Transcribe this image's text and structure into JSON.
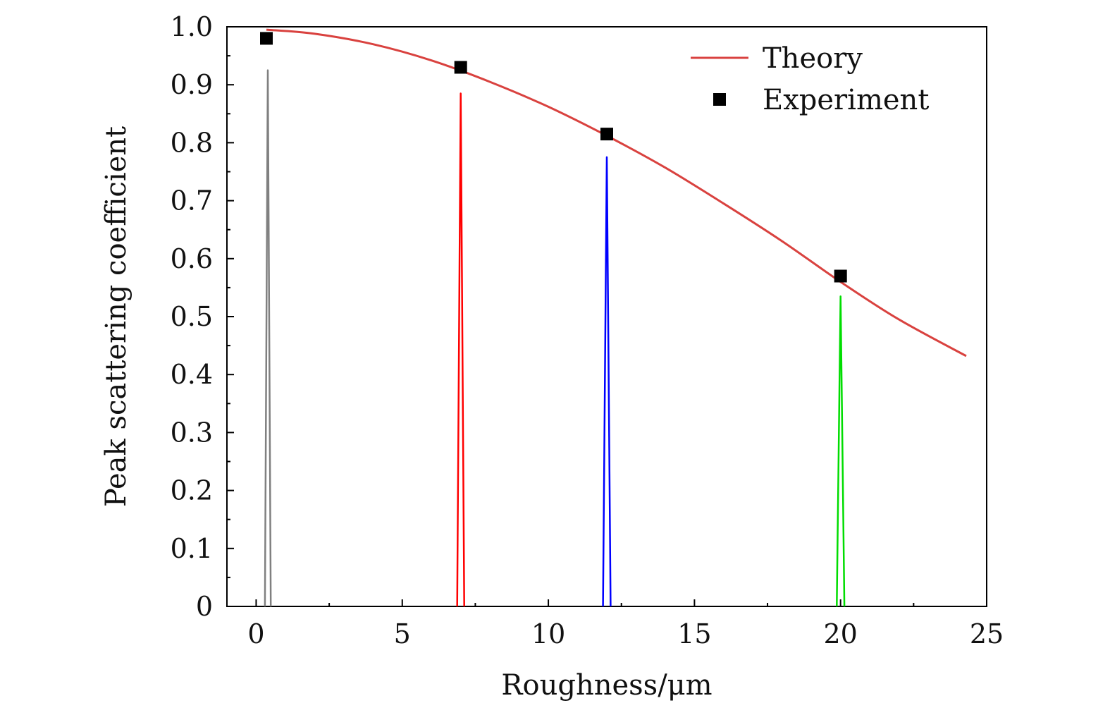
{
  "chart_data": {
    "type": "line",
    "title": "",
    "xlabel": "Roughness/μm",
    "ylabel": "Peak scattering coefficient",
    "xlim": [
      -1,
      25
    ],
    "ylim": [
      0,
      1.0
    ],
    "x_ticks": [
      0,
      5,
      10,
      15,
      20,
      25
    ],
    "x_tick_labels": [
      "0",
      "5",
      "10",
      "15",
      "20",
      "25"
    ],
    "y_ticks": [
      0,
      0.1,
      0.2,
      0.3,
      0.4,
      0.5,
      0.6,
      0.7,
      0.8,
      0.9,
      1.0
    ],
    "y_tick_labels": [
      "0",
      "0.1",
      "0.2",
      "0.3",
      "0.4",
      "0.5",
      "0.6",
      "0.7",
      "0.8",
      "0.9",
      "1.0"
    ],
    "grid": false,
    "legend_position": "top-right",
    "series": [
      {
        "name": "Theory",
        "kind": "line",
        "color": "#d9423f",
        "x": [
          0.35,
          2,
          4,
          6,
          8,
          10,
          12,
          14,
          16,
          18,
          20,
          22,
          24.3
        ],
        "y": [
          0.995,
          0.988,
          0.97,
          0.942,
          0.905,
          0.862,
          0.812,
          0.757,
          0.695,
          0.63,
          0.56,
          0.495,
          0.432
        ]
      },
      {
        "name": "Experiment",
        "kind": "scatter",
        "color": "#000000",
        "x": [
          0.35,
          7,
          12,
          20
        ],
        "y": [
          0.98,
          0.93,
          0.815,
          0.57
        ]
      }
    ],
    "peaks": [
      {
        "center": 0.4,
        "height": 0.925,
        "half_width": 0.1,
        "color": "#808080"
      },
      {
        "center": 7.0,
        "height": 0.885,
        "half_width": 0.12,
        "color": "#ff0000"
      },
      {
        "center": 12.0,
        "height": 0.775,
        "half_width": 0.13,
        "color": "#0000ff"
      },
      {
        "center": 20.0,
        "height": 0.535,
        "half_width": 0.13,
        "color": "#00dd00"
      }
    ]
  }
}
